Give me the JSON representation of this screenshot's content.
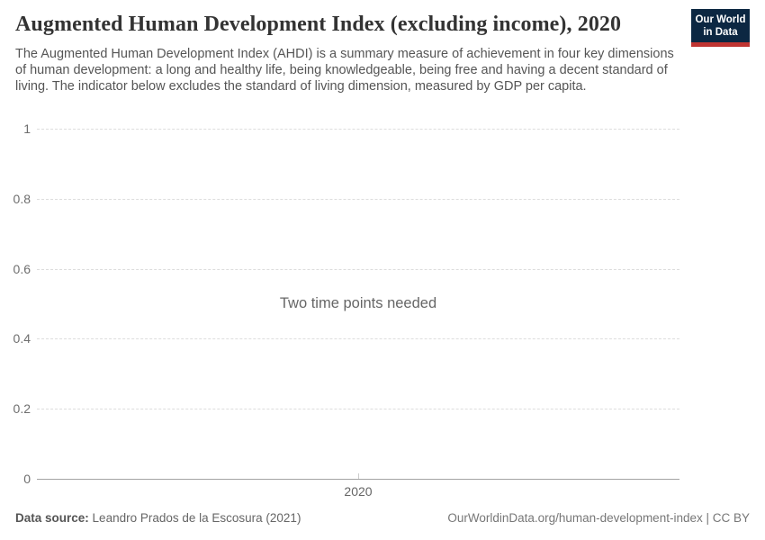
{
  "header": {
    "title": "Augmented Human Development Index (excluding income), 2020",
    "subtitle": "The Augmented Human Development Index (AHDI) is a summary measure of achievement in four key dimensions of human development: a long and healthy life, being knowledgeable, being free and having a decent standard of living. The indicator below excludes the standard of living dimension, measured by GDP per capita.",
    "logo": {
      "line1": "Our World",
      "line2": "in Data",
      "bg_color": "#0c2742",
      "bar_color": "#bf3431"
    }
  },
  "chart": {
    "message": "Two time points needed",
    "y_axis": {
      "ticks": [
        {
          "label": "1",
          "value": 1
        },
        {
          "label": "0.8",
          "value": 0.8
        },
        {
          "label": "0.6",
          "value": 0.6
        },
        {
          "label": "0.4",
          "value": 0.4
        },
        {
          "label": "0.2",
          "value": 0.2
        },
        {
          "label": "0",
          "value": 0
        }
      ]
    },
    "x_axis": {
      "ticks": [
        {
          "label": "2020",
          "position": 0.5
        }
      ]
    }
  },
  "footer": {
    "source_label": "Data source:",
    "source_value": "Leandro Prados de la Escosura (2021)",
    "attribution": "OurWorldinData.org/human-development-index | CC BY"
  },
  "chart_data": {
    "type": "line",
    "title": "Augmented Human Development Index (excluding income), 2020",
    "series": [],
    "empty_state_message": "Two time points needed",
    "x_ticks": [
      "2020"
    ],
    "y_ticks": [
      1,
      0.8,
      0.6,
      0.4,
      0.2,
      0
    ],
    "ylim": [
      0,
      1
    ],
    "xlabel": "",
    "ylabel": "",
    "grid": "horizontal-dashed",
    "legend": "none",
    "colors": {
      "gridline": "#dddddd",
      "axis_line": "#a3a3a3",
      "tick_label": "#6e6e6e",
      "message_text": "#666666"
    }
  }
}
